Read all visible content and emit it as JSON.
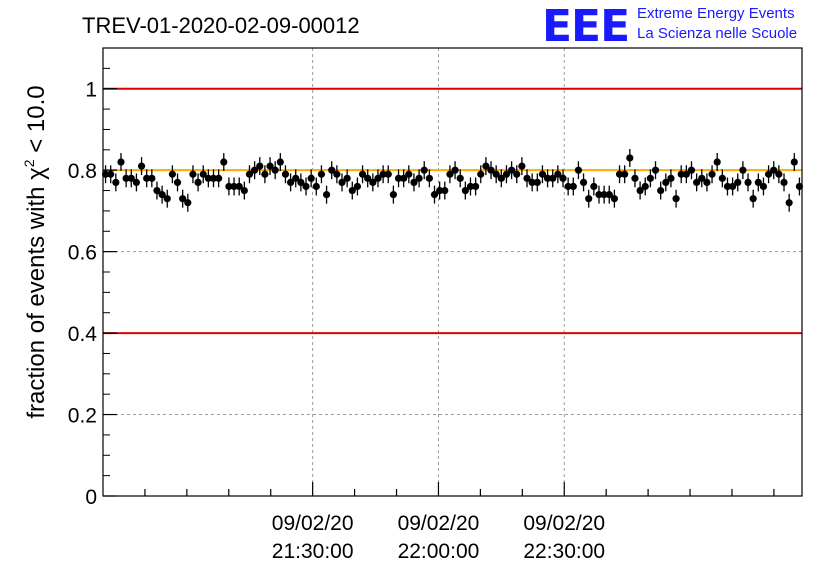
{
  "title": "TREV-01-2020-02-09-00012",
  "logo": {
    "mark": "EEE",
    "line1": "Extreme Energy Events",
    "line2": "La Scienza nelle Scuole",
    "color": "#1a1aff"
  },
  "chart_data": {
    "type": "scatter",
    "title": "TREV-01-2020-02-09-00012",
    "ylabel_prefix": "fraction of events with ",
    "ylabel_chi": "χ",
    "ylabel_sup": "2",
    "ylabel_suffix": " < 10.0",
    "xlabel": "",
    "ylim": [
      0,
      1.1
    ],
    "yticks": [
      0,
      0.2,
      0.4,
      0.6,
      0.8,
      1
    ],
    "ytick_labels": [
      "0",
      "0.2",
      "0.4",
      "0.6",
      "0.8",
      "1"
    ],
    "xticks": [
      {
        "date": "09/02/20",
        "time": "21:30:00",
        "minutes": 50
      },
      {
        "date": "09/02/20",
        "time": "22:00:00",
        "minutes": 80
      },
      {
        "date": "09/02/20",
        "time": "22:30:00",
        "minutes": 110
      }
    ],
    "xlim_minutes": [
      0,
      166.7
    ],
    "x_origin": "09/02/20 20:40:00",
    "grid": true,
    "reference_lines": [
      {
        "y": 1.0,
        "color": "#dd0000"
      },
      {
        "y": 0.4,
        "color": "#dd0000"
      },
      {
        "y": 0.8,
        "color": "#ffaa00"
      }
    ],
    "series": [
      {
        "marker_color": "#000000",
        "error": 0.022,
        "values": [
          0.79,
          0.79,
          0.77,
          0.82,
          0.78,
          0.78,
          0.77,
          0.81,
          0.78,
          0.78,
          0.75,
          0.74,
          0.73,
          0.79,
          0.77,
          0.73,
          0.72,
          0.79,
          0.77,
          0.79,
          0.78,
          0.78,
          0.78,
          0.82,
          0.76,
          0.76,
          0.76,
          0.75,
          0.79,
          0.8,
          0.81,
          0.79,
          0.81,
          0.8,
          0.82,
          0.79,
          0.77,
          0.78,
          0.77,
          0.76,
          0.78,
          0.76,
          0.79,
          0.74,
          0.8,
          0.79,
          0.77,
          0.78,
          0.75,
          0.76,
          0.79,
          0.78,
          0.77,
          0.78,
          0.79,
          0.79,
          0.74,
          0.78,
          0.78,
          0.79,
          0.77,
          0.78,
          0.8,
          0.78,
          0.74,
          0.75,
          0.75,
          0.79,
          0.8,
          0.78,
          0.75,
          0.76,
          0.76,
          0.79,
          0.81,
          0.8,
          0.79,
          0.78,
          0.79,
          0.8,
          0.79,
          0.81,
          0.78,
          0.77,
          0.77,
          0.79,
          0.78,
          0.78,
          0.79,
          0.78,
          0.76,
          0.76,
          0.8,
          0.77,
          0.73,
          0.76,
          0.74,
          0.74,
          0.74,
          0.73,
          0.79,
          0.79,
          0.83,
          0.78,
          0.75,
          0.76,
          0.78,
          0.8,
          0.75,
          0.77,
          0.78,
          0.73,
          0.79,
          0.79,
          0.8,
          0.77,
          0.78,
          0.77,
          0.79,
          0.82,
          0.78,
          0.76,
          0.76,
          0.77,
          0.8,
          0.77,
          0.73,
          0.77,
          0.76,
          0.79,
          0.8,
          0.79,
          0.77,
          0.72,
          0.82,
          0.76
        ]
      }
    ]
  }
}
